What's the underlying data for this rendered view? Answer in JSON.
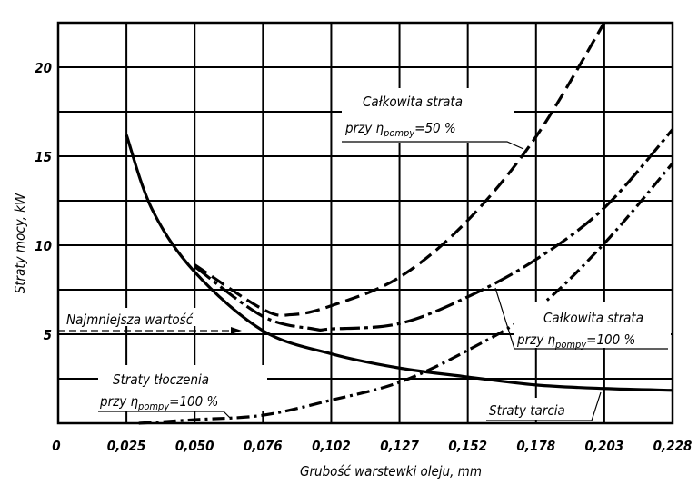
{
  "chart_data": {
    "type": "line",
    "title": "",
    "xlabel": "Grubość warstewki oleju, mm",
    "ylabel": "Straty mocy, kW",
    "xlim": [
      0,
      0.2286
    ],
    "ylim": [
      0,
      22.5
    ],
    "grid": true,
    "x_ticks": [
      "0",
      "0,025",
      "0,050",
      "0,076",
      "0,102",
      "0,127",
      "0,152",
      "0,178",
      "0,203",
      "0,228"
    ],
    "x_tick_values": [
      0,
      0.0254,
      0.0508,
      0.0762,
      0.1016,
      0.127,
      0.1524,
      0.1778,
      0.2032,
      0.2286
    ],
    "y_ticks": [
      "5",
      "10",
      "15",
      "20"
    ],
    "y_tick_values": [
      5,
      10,
      15,
      20
    ],
    "y_gridlines": [
      2.5,
      5,
      7.5,
      10,
      12.5,
      15,
      17.5,
      20
    ],
    "series": [
      {
        "name": "Straty tarcia",
        "style": "solid",
        "x": [
          0.0254,
          0.035,
          0.0508,
          0.0762,
          0.1016,
          0.127,
          0.1524,
          0.1778,
          0.2032,
          0.2286
        ],
        "y": [
          16.2,
          12.0,
          8.5,
          5.2,
          3.9,
          3.1,
          2.6,
          2.15,
          1.95,
          1.85
        ]
      },
      {
        "name": "Straty tłoczenia przy η pompy = 100 %",
        "style": "dashdot",
        "x": [
          0.03,
          0.0508,
          0.0762,
          0.1016,
          0.127,
          0.1524,
          0.1778,
          0.2032,
          0.2286
        ],
        "y": [
          0.0,
          0.2,
          0.45,
          1.3,
          2.3,
          4.1,
          6.4,
          10.1,
          14.6
        ]
      },
      {
        "name": "Całkowita strata przy η pompy = 100 %",
        "style": "dashdotlong",
        "x": [
          0.0508,
          0.0762,
          0.095,
          0.1016,
          0.127,
          0.1524,
          0.1778,
          0.2032,
          0.2286
        ],
        "y": [
          8.8,
          6.0,
          5.3,
          5.3,
          5.6,
          7.1,
          9.2,
          12.1,
          16.5
        ]
      },
      {
        "name": "Całkowita strata przy η pompy = 50 %",
        "style": "dashed",
        "x": [
          0.0508,
          0.0762,
          0.087,
          0.1016,
          0.127,
          0.1524,
          0.1778,
          0.2032
        ],
        "y": [
          8.9,
          6.4,
          6.1,
          6.6,
          8.2,
          11.4,
          16.1,
          22.5
        ]
      }
    ],
    "annotations": {
      "total50": {
        "line1": "Całkowita strata",
        "prefix": "przy η",
        "sub": "pompy",
        "suffix": "=50 %"
      },
      "total100": {
        "line1": "Całkowita strata",
        "prefix": "przy η",
        "sub": "pompy",
        "suffix": "=100 %"
      },
      "friction": {
        "line1": "Straty tarcia"
      },
      "pumping": {
        "line1": "Straty tłoczenia",
        "prefix": "przy η",
        "sub": "pompy",
        "suffix": "=100 %"
      },
      "minimum": {
        "line1": "Najmniejsza wartość",
        "value": 5.3
      }
    }
  }
}
